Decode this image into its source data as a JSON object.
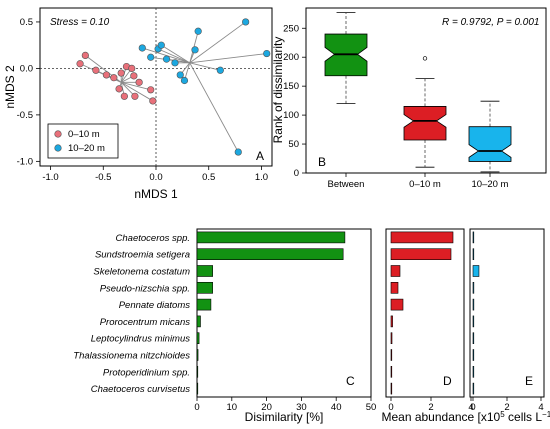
{
  "chart_data": [
    {
      "panel": "A",
      "type": "scatter",
      "xlabel": "nMDS 1",
      "ylabel": "nMDS 2",
      "xlim": [
        -1.1,
        1.1
      ],
      "ylim": [
        -1.05,
        0.65
      ],
      "xticks": [
        "-1.0",
        "-0.5",
        "0.0",
        "0.5",
        "1.0"
      ],
      "yticks": [
        "-1.0",
        "-0.5",
        "0.0",
        "0.5"
      ],
      "annotation": "Stress = 0.10",
      "legend_position": "bottom-left",
      "colors": {
        "0-10 m": "#e8707a",
        "10-20 m": "#1ca8e0"
      },
      "centroids": {
        "0-10 m": [
          -0.33,
          -0.15
        ],
        "10-20 m": [
          0.32,
          0.06
        ]
      },
      "series": [
        {
          "name": "0–10 m",
          "points": [
            [
              -0.72,
              0.05
            ],
            [
              -0.67,
              0.14
            ],
            [
              -0.57,
              -0.02
            ],
            [
              -0.47,
              -0.07
            ],
            [
              -0.4,
              -0.1
            ],
            [
              -0.33,
              -0.05
            ],
            [
              -0.28,
              0.02
            ],
            [
              -0.23,
              0.0
            ],
            [
              -0.21,
              -0.08
            ],
            [
              -0.16,
              -0.15
            ],
            [
              -0.35,
              -0.22
            ],
            [
              -0.3,
              -0.3
            ],
            [
              -0.2,
              -0.3
            ],
            [
              -0.05,
              -0.23
            ],
            [
              -0.03,
              -0.35
            ]
          ]
        },
        {
          "name": "10–20 m",
          "points": [
            [
              -0.13,
              0.22
            ],
            [
              0.02,
              0.21
            ],
            [
              0.05,
              0.25
            ],
            [
              -0.05,
              0.12
            ],
            [
              0.1,
              0.1
            ],
            [
              0.18,
              0.06
            ],
            [
              0.23,
              -0.07
            ],
            [
              0.27,
              -0.13
            ],
            [
              0.37,
              0.2
            ],
            [
              0.4,
              0.4
            ],
            [
              0.61,
              -0.02
            ],
            [
              0.85,
              0.5
            ],
            [
              1.05,
              0.16
            ],
            [
              0.78,
              -0.9
            ]
          ]
        }
      ],
      "panel_label": "A"
    },
    {
      "panel": "B",
      "type": "box",
      "ylabel": "Rank of dissimilarity",
      "ylim": [
        0,
        285
      ],
      "yticks": [
        "0",
        "50",
        "100",
        "150",
        "200",
        "250"
      ],
      "categories": [
        "Between",
        "0–10 m",
        "10–20 m"
      ],
      "colors": [
        "#129212",
        "#dc1e24",
        "#18b4ec"
      ],
      "boxes": [
        {
          "min": 120,
          "q1": 168,
          "median": 205,
          "q3": 240,
          "max": 277,
          "notch": [
            193,
            217
          ],
          "outliers": []
        },
        {
          "min": 10,
          "q1": 57,
          "median": 90,
          "q3": 115,
          "max": 163,
          "notch": [
            79,
            101
          ],
          "outliers": [
            198
          ]
        },
        {
          "min": 2,
          "q1": 20,
          "median": 38,
          "q3": 80,
          "max": 124,
          "notch": [
            27,
            49
          ],
          "outliers": []
        }
      ],
      "annotation": "R = 0.9792,  P = 0.001",
      "panel_label": "B"
    },
    {
      "panel": "C",
      "type": "bar",
      "orientation": "horizontal",
      "xlabel": "Disimilarity [%]",
      "xlim": [
        0,
        50
      ],
      "xticks": [
        "0",
        "10",
        "20",
        "30",
        "40",
        "50"
      ],
      "color": "#129212",
      "categories": [
        "Chaetoceros spp.",
        "Sundstroemia setigera",
        "Skeletonema costatum",
        "Pseudo-nizschia spp.",
        "Pennate diatoms",
        "Prorocentrum micans",
        "Leptocylindrus minimus",
        "Thalassionema nitzchioides",
        "Protoperidinium spp.",
        "Chaetoceros curvisetus"
      ],
      "values": [
        42.5,
        42,
        4.5,
        4.5,
        4,
        1,
        0.6,
        0.3,
        0.2,
        0.1
      ],
      "panel_label": "C"
    },
    {
      "panel": "D",
      "type": "bar",
      "orientation": "horizontal",
      "xlim": [
        0,
        4
      ],
      "xticks": [
        "0",
        "2",
        "4"
      ],
      "color": "#dc1e24",
      "values": [
        3.1,
        3.0,
        0.45,
        0.35,
        0.6,
        0.08,
        0.05,
        0.03,
        0.02,
        0.02
      ],
      "panel_label": "D"
    },
    {
      "panel": "E",
      "type": "bar",
      "orientation": "horizontal",
      "xlim": [
        0,
        4
      ],
      "xticks": [
        "0",
        "2",
        "4"
      ],
      "color": "#18b4ec",
      "values": [
        0.02,
        0.03,
        0.35,
        0.05,
        0.05,
        0.01,
        0.01,
        0.02,
        0.01,
        0.01
      ],
      "panel_label": "E"
    }
  ],
  "shared_xlabel_DE": {
    "pre": "Mean abundance [x10",
    "sup1": "5",
    "mid": " cells L",
    "sup2": "−1",
    "post": "]"
  }
}
